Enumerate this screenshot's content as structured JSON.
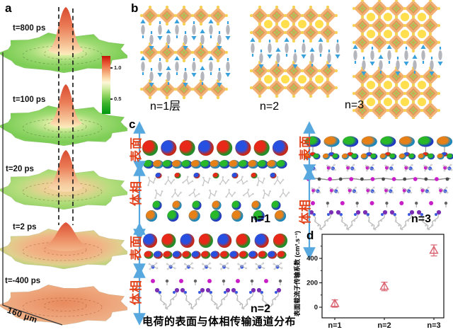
{
  "panels": {
    "a": {
      "label": "a",
      "surfaces": [
        {
          "label": "t=800 ps"
        },
        {
          "label": "t=100 ps"
        },
        {
          "label": "t=20 ps"
        },
        {
          "label": "t=2 ps"
        },
        {
          "label": "t=-400 ps"
        }
      ],
      "colorbar": {
        "tick_high": "1.0",
        "tick_low": "0.5"
      },
      "scale_label": "160 μm"
    },
    "b": {
      "label": "b",
      "structures": [
        {
          "label": "n=1层"
        },
        {
          "label": "n=2"
        },
        {
          "label": "n=3"
        }
      ]
    },
    "c": {
      "label": "c",
      "surface_label": "表面",
      "bulk_label": "体相",
      "sublabels": [
        {
          "label": "n=1"
        },
        {
          "label": "n=2"
        },
        {
          "label": "n=3"
        }
      ],
      "caption": "电荷的表面与体相传输通道分布"
    },
    "d": {
      "label": "d"
    }
  },
  "chart_data": {
    "type": "scatter",
    "categories": [
      "n=1",
      "n=2",
      "n=3"
    ],
    "values": [
      30,
      170,
      465
    ],
    "errors": [
      30,
      35,
      45
    ],
    "title": "",
    "xlabel": "",
    "ylabel": "表面载流子传输系数 (cm².s⁻¹)",
    "yticks": [
      0,
      200,
      400
    ],
    "yticks_minor": [
      100,
      300,
      500
    ],
    "ylim": [
      -80,
      575
    ],
    "grid": false,
    "legend": null,
    "marker": "open-triangle",
    "marker_color": "#d96470"
  },
  "colors": {
    "accent_red_label": "#e2411a",
    "arrow_blue": "#58a8e0",
    "octahedron_orange": "#f2b273",
    "octahedron_inner": "#e0975a",
    "cation_yellow": "#ffdf4e",
    "molecule_gray": "#b5b5bd",
    "molecule_arrow_blue": "#38a1dc",
    "halide_magenta": "#c81ec8",
    "marker_pink": "#d96470"
  }
}
